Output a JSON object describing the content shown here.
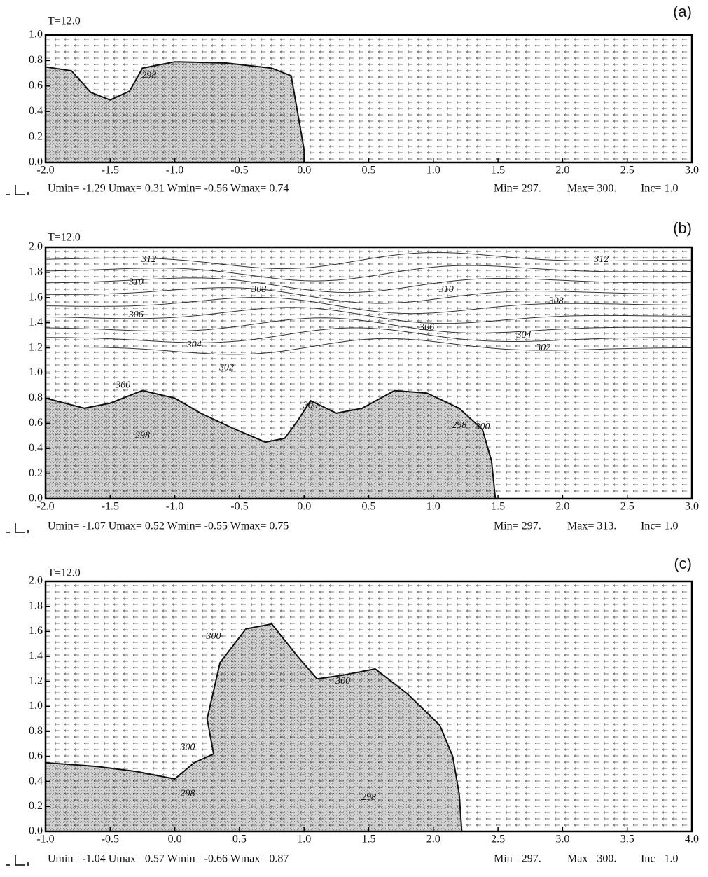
{
  "chart_data": [
    {
      "type": "contour",
      "time_label": "T=12.0",
      "panel_label": "(a)",
      "xlim": [
        -2.0,
        3.0
      ],
      "ylim": [
        0.0,
        1.0
      ],
      "xticks": [
        {
          "value": -2.0,
          "label": "-2.0"
        },
        {
          "value": -1.5,
          "label": "-1.5"
        },
        {
          "value": -1.0,
          "label": "-1.0"
        },
        {
          "value": -0.5,
          "label": "-0.5"
        },
        {
          "value": 0.0,
          "label": "0.0"
        },
        {
          "value": 0.5,
          "label": "0.5"
        },
        {
          "value": 1.0,
          "label": "1.0"
        },
        {
          "value": 1.5,
          "label": "1.5"
        },
        {
          "value": 2.0,
          "label": "2.0"
        },
        {
          "value": 2.5,
          "label": "2.5"
        },
        {
          "value": 3.0,
          "label": "3.0"
        }
      ],
      "yticks": [
        {
          "value": 0.0,
          "label": "0.0"
        },
        {
          "value": 0.2,
          "label": "0.2"
        },
        {
          "value": 0.4,
          "label": "0.4"
        },
        {
          "value": 0.6,
          "label": "0.6"
        },
        {
          "value": 0.8,
          "label": "0.8"
        },
        {
          "value": 1.0,
          "label": "1.0"
        }
      ],
      "contour_labels": [
        298
      ],
      "velocity_stats": "Umin= -1.29 Umax= 0.31 Wmin= -0.56 Wmax= 0.74",
      "min_text": "Min= 297.",
      "max_text": "Max= 300.",
      "inc_text": "Inc= 1.0"
    },
    {
      "type": "contour",
      "time_label": "T=12.0",
      "panel_label": "(b)",
      "xlim": [
        -2.0,
        3.0
      ],
      "ylim": [
        0.0,
        2.0
      ],
      "xticks": [
        {
          "value": -2.0,
          "label": "-2.0"
        },
        {
          "value": -1.5,
          "label": "-1.5"
        },
        {
          "value": -1.0,
          "label": "-1.0"
        },
        {
          "value": -0.5,
          "label": "-0.5"
        },
        {
          "value": 0.0,
          "label": "0.0"
        },
        {
          "value": 0.5,
          "label": "0.5"
        },
        {
          "value": 1.0,
          "label": "1.0"
        },
        {
          "value": 1.5,
          "label": "1.5"
        },
        {
          "value": 2.0,
          "label": "2.0"
        },
        {
          "value": 2.5,
          "label": "2.5"
        },
        {
          "value": 3.0,
          "label": "3.0"
        }
      ],
      "yticks": [
        {
          "value": 0.0,
          "label": "0.0"
        },
        {
          "value": 0.2,
          "label": "0.2"
        },
        {
          "value": 0.4,
          "label": "0.4"
        },
        {
          "value": 0.6,
          "label": "0.6"
        },
        {
          "value": 0.8,
          "label": "0.8"
        },
        {
          "value": 1.0,
          "label": "1.0"
        },
        {
          "value": 1.2,
          "label": "1.2"
        },
        {
          "value": 1.4,
          "label": "1.4"
        },
        {
          "value": 1.6,
          "label": "1.6"
        },
        {
          "value": 1.8,
          "label": "1.8"
        },
        {
          "value": 2.0,
          "label": "2.0"
        }
      ],
      "contour_labels": [
        312,
        310,
        308,
        306,
        304,
        302,
        300,
        298,
        300,
        298,
        300,
        312,
        310,
        308,
        306,
        304,
        302
      ],
      "velocity_stats": "Umin= -1.07 Umax= 0.52 Wmin= -0.55 Wmax= 0.75",
      "min_text": "Min= 297.",
      "max_text": "Max= 313.",
      "inc_text": "Inc= 1.0"
    },
    {
      "type": "contour",
      "time_label": "T=12.0",
      "panel_label": "(c)",
      "xlim": [
        -1.0,
        4.0
      ],
      "ylim": [
        0.0,
        2.0
      ],
      "xticks": [
        {
          "value": -1.0,
          "label": "-1.0"
        },
        {
          "value": -0.5,
          "label": "-0.5"
        },
        {
          "value": 0.0,
          "label": "0.0"
        },
        {
          "value": 0.5,
          "label": "0.5"
        },
        {
          "value": 1.0,
          "label": "1.0"
        },
        {
          "value": 1.5,
          "label": "1.5"
        },
        {
          "value": 2.0,
          "label": "2.0"
        },
        {
          "value": 2.5,
          "label": "2.5"
        },
        {
          "value": 3.0,
          "label": "3.0"
        },
        {
          "value": 3.5,
          "label": "3.5"
        },
        {
          "value": 4.0,
          "label": "4.0"
        }
      ],
      "yticks": [
        {
          "value": 0.0,
          "label": "0.0"
        },
        {
          "value": 0.2,
          "label": "0.2"
        },
        {
          "value": 0.4,
          "label": "0.4"
        },
        {
          "value": 0.6,
          "label": "0.6"
        },
        {
          "value": 0.8,
          "label": "0.8"
        },
        {
          "value": 1.0,
          "label": "1.0"
        },
        {
          "value": 1.2,
          "label": "1.2"
        },
        {
          "value": 1.4,
          "label": "1.4"
        },
        {
          "value": 1.6,
          "label": "1.6"
        },
        {
          "value": 1.8,
          "label": "1.8"
        },
        {
          "value": 2.0,
          "label": "2.0"
        }
      ],
      "contour_labels": [
        300,
        300,
        300,
        298,
        298
      ],
      "velocity_stats": "Umin= -1.04 Umax= 0.57 Wmin= -0.66 Wmax= 0.87",
      "min_text": "Min= 297.",
      "max_text": "Max= 300.",
      "inc_text": "Inc= 1.0"
    }
  ]
}
